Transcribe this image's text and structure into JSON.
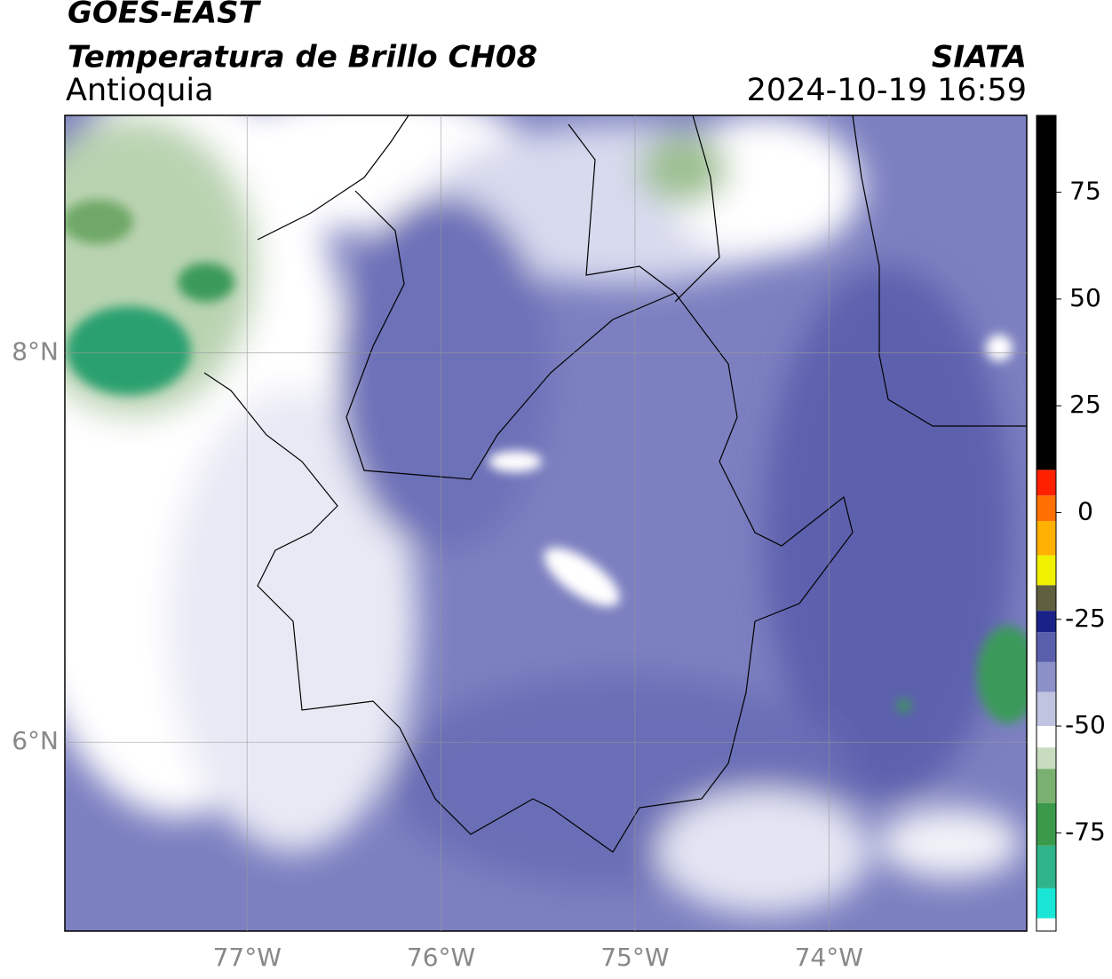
{
  "header": {
    "satellite": "GOES-EAST",
    "product": "Temperatura de Brillo CH08",
    "region": "Antioquia",
    "source": "SIATA",
    "datetime": "2024-10-19 16:59"
  },
  "chart_data": {
    "type": "map",
    "xlim": [
      -77.94,
      -72.98
    ],
    "ylim": [
      5.03,
      9.22
    ],
    "xticks": [
      {
        "value": -77,
        "label": "77°W"
      },
      {
        "value": -76,
        "label": "76°W"
      },
      {
        "value": -75,
        "label": "75°W"
      },
      {
        "value": -74,
        "label": "74°W"
      }
    ],
    "yticks": [
      {
        "value": 6,
        "label": "6°N"
      },
      {
        "value": 8,
        "label": "8°N"
      }
    ],
    "grid": true,
    "colorbar": {
      "clim": [
        -98,
        93
      ],
      "ticks": [
        -75,
        -50,
        -25,
        0,
        25,
        50,
        75
      ],
      "levels": [
        -98,
        -95,
        -88,
        -78,
        -68,
        -60,
        -55,
        -50,
        -42,
        -35,
        -28,
        -23,
        -17,
        -10,
        -2,
        4,
        10,
        93
      ],
      "colors": [
        "#ffffff",
        "#19e6d6",
        "#2fb48a",
        "#3a9a4a",
        "#7ab070",
        "#c8dcc0",
        "#ffffff",
        "#c0c4e0",
        "#8c90c8",
        "#5a5fac",
        "#1a2288",
        "#606040",
        "#f0f000",
        "#ffb000",
        "#ff7000",
        "#ff2000",
        "#000000"
      ]
    }
  }
}
